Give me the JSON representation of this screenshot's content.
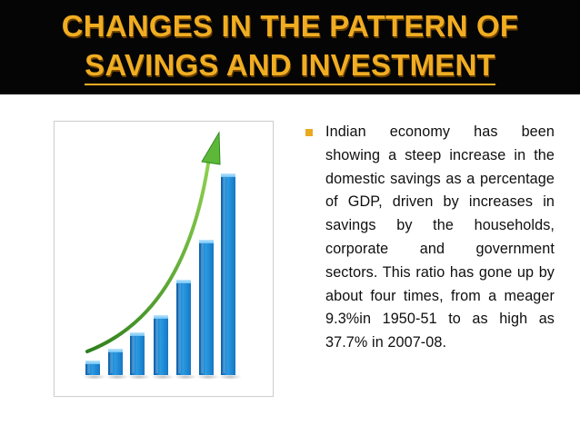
{
  "slide": {
    "title_line1": "CHANGES IN THE PATTERN OF",
    "title_line2": "SAVINGS AND INVESTMENT",
    "bullet_text": "Indian economy has been showing a steep increase in the domestic savings as a percentage of GDP, driven by increases in savings by the households, corporate and government sectors. This ratio has gone up by about four times, from a meager 9.3%in 1950-51 to as high as 37.7% in 2007-08."
  },
  "illustration": {
    "type": "bar",
    "bar_values": [
      1,
      2,
      3,
      4,
      5,
      6,
      7
    ],
    "arrow": "up-right-trend-arrow",
    "bar_color": "#1f8ad4",
    "arrow_color": "#3fa535"
  },
  "colors": {
    "title": "#f0ad22",
    "title_band": "#050505",
    "bullet": "#e9ab22",
    "text": "#0f0f0f"
  }
}
